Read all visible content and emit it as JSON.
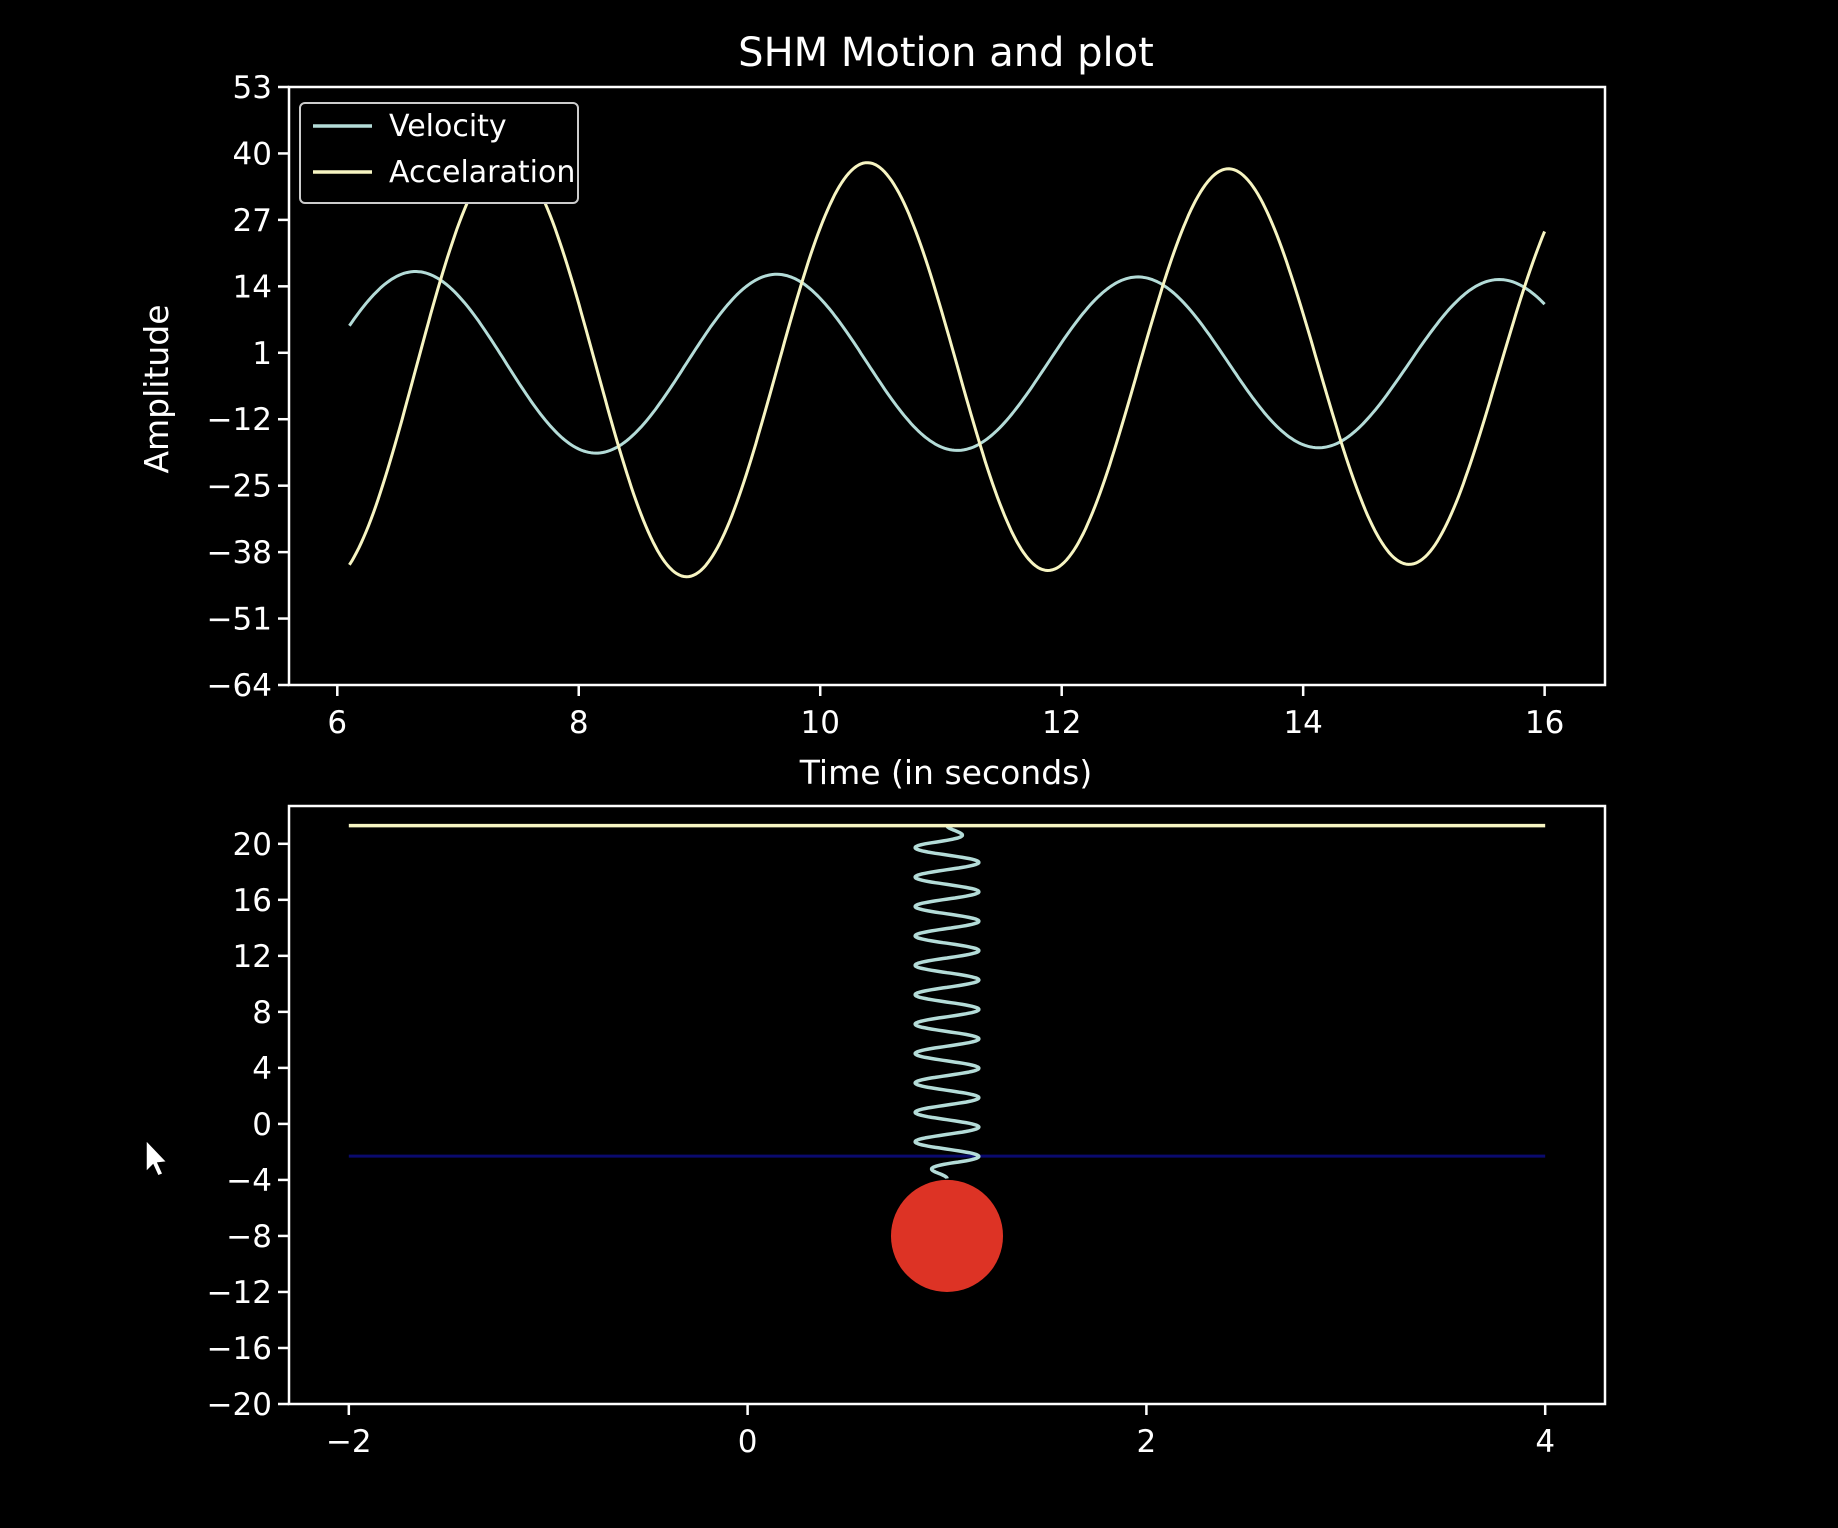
{
  "chart_data": [
    {
      "type": "line",
      "title": "SHM Motion and plot",
      "xlabel": "Time (in seconds)",
      "ylabel": "Amplitude",
      "xlim": [
        5.6,
        16.5
      ],
      "ylim": [
        -64,
        53
      ],
      "xticks": [
        6,
        8,
        10,
        12,
        14,
        16
      ],
      "yticks": [
        53,
        40,
        27,
        14,
        1,
        -12,
        -25,
        -38,
        -51,
        -64
      ],
      "x_range": [
        6.1,
        16.0
      ],
      "legend": "top-left",
      "grid": false,
      "series": [
        {
          "name": "Velocity",
          "color": "#b4dcd8",
          "model": {
            "offset": -1,
            "amplitude": 18,
            "omega": 2.1,
            "phase_time": 6.65,
            "decay": 0.0102
          }
        },
        {
          "name": "Accelaration",
          "color": "#f7f5c2",
          "model": {
            "offset": -2,
            "amplitude": 42,
            "omega": 2.1,
            "phase_time": 7.4,
            "decay": 0.0102
          }
        }
      ]
    },
    {
      "type": "scatter",
      "title": "",
      "xlabel": "",
      "ylabel": "",
      "xlim": [
        -2.3,
        4.3
      ],
      "ylim": [
        -20,
        22.7
      ],
      "xticks": [
        -2,
        0,
        2,
        4
      ],
      "yticks": [
        20,
        16,
        12,
        8,
        4,
        0,
        -4,
        -8,
        -12,
        -16,
        -20
      ],
      "grid": false,
      "elements": {
        "ceiling_line": {
          "y": 21.3,
          "x": [
            -2,
            4
          ],
          "color": "#f7f5c2"
        },
        "equilibrium_line": {
          "y": -2.3,
          "x": [
            -2,
            4
          ],
          "color": "#0a0a6e"
        },
        "spring": {
          "x": 1.0,
          "y_top": 21.3,
          "y_bottom": -3.9,
          "coils": 12,
          "coil_width": 0.16,
          "color": "#b4dcd8"
        },
        "mass": {
          "x": 1.0,
          "y": -8.0,
          "radius_y": 4.0,
          "color": "#dd3325"
        }
      }
    }
  ]
}
